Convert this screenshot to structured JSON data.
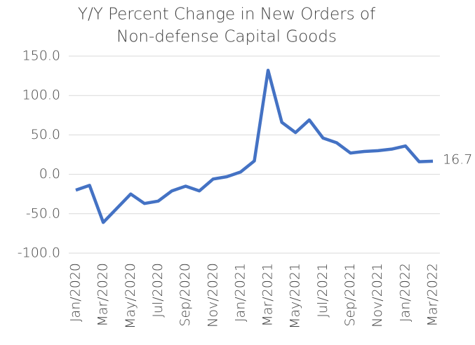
{
  "chart_data": {
    "type": "line",
    "title": [
      "Y/Y Percent Change in New Orders of",
      "Non-defense Capital Goods"
    ],
    "categories": [
      "Jan/2020",
      null,
      "Mar/2020",
      null,
      "May/2020",
      null,
      "Jul/2020",
      null,
      "Sep/2020",
      null,
      "Nov/2020",
      null,
      "Jan/2021",
      null,
      "Mar/2021",
      null,
      "May/2021",
      null,
      "Jul/2021",
      null,
      "Sep/2021",
      null,
      "Nov/2021",
      null,
      "Jan/2022",
      null,
      "Mar/2022"
    ],
    "values": [
      -20,
      -14,
      -61,
      -43,
      -25,
      -37,
      -34,
      -21,
      -15,
      -21,
      -6,
      -3,
      3,
      17,
      132,
      66,
      53,
      69,
      46,
      40,
      27,
      29,
      30,
      32,
      36,
      16,
      16.7
    ],
    "color": "#4472c4",
    "ylim": [
      -100,
      150
    ],
    "yticks": [
      {
        "value": -100,
        "label": "-100.0"
      },
      {
        "value": -50,
        "label": "-50.0"
      },
      {
        "value": 0,
        "label": "0.0"
      },
      {
        "value": 50,
        "label": "50.0"
      },
      {
        "value": 100,
        "label": "100.0"
      },
      {
        "value": 150,
        "label": "150.0"
      }
    ],
    "grid": true
  }
}
